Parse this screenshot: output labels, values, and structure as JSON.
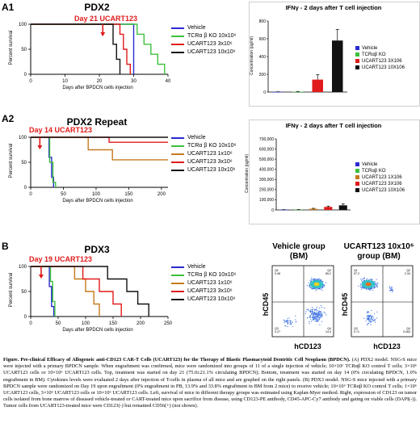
{
  "panels": {
    "a1": {
      "label": "A1",
      "title": "PDX2",
      "annotation": "Day 21 UCART123",
      "ylabel": "Percent survival",
      "xlabel": "Days after BPDCN cells injection",
      "xticks": [
        "0",
        "10",
        "20",
        "30",
        "40"
      ],
      "yticks": [
        "0",
        "50",
        "100"
      ],
      "legend": [
        {
          "text": "Vehicle",
          "color": "#2b2bd1"
        },
        {
          "text": "TCRα β KO 10x10⁶",
          "color": "#3dc03d"
        },
        {
          "text": "UCART123 3x10⁶",
          "color": "#e01b1b"
        },
        {
          "text": "UCART123 10x10⁶",
          "color": "#111111"
        }
      ]
    },
    "a1bar": {
      "title": "IFNγ - 2 days after T cell injection",
      "ylabel": "Concentration (pg/ml)",
      "yticks": [
        "0",
        "200",
        "400",
        "600",
        "800"
      ],
      "legend": [
        {
          "text": "Vehicle",
          "color": "#2b2bd1"
        },
        {
          "text": "TCRαβ KO",
          "color": "#3dc03d"
        },
        {
          "text": "UCART123 3X106",
          "color": "#e01b1b"
        },
        {
          "text": "UCART123 10X106",
          "color": "#111111"
        }
      ]
    },
    "a2": {
      "label": "A2",
      "title": "PDX2 Repeat",
      "annotation": "Day 14 UCART123",
      "ylabel": "Percent survival",
      "xlabel": "Days after BPDCN cells injection",
      "xticks": [
        "0",
        "50",
        "100",
        "150",
        "200"
      ],
      "yticks": [
        "0",
        "50",
        "100"
      ],
      "legend": [
        {
          "text": "Vehicle",
          "color": "#2b2bd1"
        },
        {
          "text": "TCRα β KO 10x10⁶",
          "color": "#3dc03d"
        },
        {
          "text": "UCART123 1x10⁶",
          "color": "#c77a1d"
        },
        {
          "text": "UCART123 3x10⁶",
          "color": "#e01b1b"
        },
        {
          "text": "UCART123 10x10⁶",
          "color": "#111111"
        }
      ]
    },
    "a2bar": {
      "title": "IFNγ - 2 days after T cell injection",
      "ylabel": "Concentration (pg/ml)",
      "yticks": [
        "0",
        "100,000",
        "200,000",
        "300,000",
        "400,000",
        "500,000",
        "600,000",
        "700,000"
      ],
      "legend": [
        {
          "text": "Vehicle",
          "color": "#2b2bd1"
        },
        {
          "text": "TCRαβ KO",
          "color": "#3dc03d"
        },
        {
          "text": "UCART123 1X106",
          "color": "#c77a1d"
        },
        {
          "text": "UCART123 3X106",
          "color": "#e01b1b"
        },
        {
          "text": "UCART123 10X106",
          "color": "#111111"
        }
      ]
    },
    "b": {
      "label": "B",
      "title": "PDX3",
      "annotation": "Day 19 UCART123",
      "ylabel": "Percent survival",
      "xlabel": "Days after BPDCN cells injection",
      "xticks": [
        "0",
        "50",
        "100",
        "150",
        "200",
        "250"
      ],
      "yticks": [
        "0",
        "50",
        "100"
      ],
      "legend": [
        {
          "text": "Vehicle",
          "color": "#2b2bd1"
        },
        {
          "text": "TCRα β KO 10x10⁶",
          "color": "#3dc03d"
        },
        {
          "text": "UCART123 1x10⁶",
          "color": "#c77a1d"
        },
        {
          "text": "UCART123 3x10⁶",
          "color": "#e01b1b"
        },
        {
          "text": "UCART123 10x10⁶",
          "color": "#111111"
        }
      ]
    },
    "flow": {
      "vehicle_title": "Vehicle group",
      "vehicle_sub": "(BM)",
      "ucart_title": "UCART123 10x10⁶",
      "ucart_sub": "group (BM)",
      "ylabel": "hCD45",
      "xlabel": "hCD123"
    }
  },
  "caption": {
    "title": "Figure. Pre-clinical Efficacy of Allogeneic anti-CD123 CAR-T Cells (UCART123) for the Therapy of Blastic Plasmacytoid Dentritic Cell Neoplasm (BPDCN).",
    "body": " (A) PDX2 model. NSG-S mice were injected with a primary BPDCN sample. When engraftment was confirmed, mice were randomized into groups of 11 of a single injection of vehicle; 10×10⁶ TCRαβ KO control T cells; 3×10⁶ UCART123 cells or 10×10⁶ UCART123 cells. Top, treatment was started on day 21 (75.0±21.1% circulating BPDCN); Bottom, treatment was started on day 14 (0% circulating BPDCN, 1.0% engraftment in BM). Cytokines levels were evaluated 2 days after injection of T-cells in plasma of all mice and are graphed on the right panels. (B) PDX3 model. NSG-S mice injected with a primary BPDCN sample were randomized on Day 19 upon engraftment (0% engraftment in PB, 13.9% and 33.8% engraftment in BM from 2 mice) to receive vehicle; 10×10⁶ TCRαβ KO control T cells; 1×10⁶ UCART123 cells, 3×10⁶ UCART123 cells or 10×10⁶ UCART123 cells. Left, survival of mice in different therapy groups was estimated using Kaplan-Myer method. Right, expression of CD123 on tumor cells isolated from bone marrow of diseased vehicle-treated or CART-treated mice upon sacrifice from disease, using CD123-PE antibody, CD45-APC-Cy7 antibody and gating on viable cells (DAPI(-)). Tumor cells from UCART123-treated mice were CD123(-) but remained CD56(+) (not shown)."
  },
  "chart_data": [
    {
      "type": "line",
      "title": "PDX2",
      "xlabel": "Days after BPDCN cells injection",
      "ylabel": "Percent survival",
      "xlim": [
        0,
        40
      ],
      "ylim": [
        0,
        100
      ],
      "series": [
        {
          "name": "Vehicle",
          "points": [
            [
              0,
              100
            ],
            [
              30,
              100
            ],
            [
              30,
              0
            ]
          ]
        },
        {
          "name": "TCRα β KO 10x10⁶",
          "points": [
            [
              0,
              100
            ],
            [
              31,
              100
            ],
            [
              31,
              80
            ],
            [
              33,
              80
            ],
            [
              33,
              60
            ],
            [
              35,
              60
            ],
            [
              35,
              40
            ],
            [
              37,
              40
            ],
            [
              37,
              20
            ],
            [
              39,
              20
            ],
            [
              39,
              0
            ]
          ]
        },
        {
          "name": "UCART123 3x10⁶",
          "points": [
            [
              0,
              100
            ],
            [
              26,
              100
            ],
            [
              26,
              80
            ],
            [
              27,
              80
            ],
            [
              27,
              50
            ],
            [
              28,
              50
            ],
            [
              28,
              20
            ],
            [
              29,
              20
            ],
            [
              29,
              0
            ]
          ]
        },
        {
          "name": "UCART123 10x10⁶",
          "points": [
            [
              0,
              100
            ],
            [
              24,
              100
            ],
            [
              24,
              60
            ],
            [
              25,
              60
            ],
            [
              25,
              30
            ],
            [
              26,
              30
            ],
            [
              26,
              0
            ]
          ]
        }
      ]
    },
    {
      "type": "bar",
      "title": "IFNγ - 2 days after T cell injection",
      "ylabel": "Concentration (pg/ml)",
      "ylim": [
        0,
        800
      ],
      "categories": [
        "Vehicle",
        "TCRαβ KO",
        "UCART123 3X106",
        "UCART123 10X106"
      ],
      "values": [
        2,
        5,
        140,
        580
      ],
      "errors": [
        1,
        2,
        55,
        125
      ]
    },
    {
      "type": "line",
      "title": "PDX2 Repeat",
      "xlabel": "Days after BPDCN cells injection",
      "ylabel": "Percent survival",
      "xlim": [
        0,
        210
      ],
      "ylim": [
        0,
        100
      ],
      "series": [
        {
          "name": "Vehicle",
          "points": [
            [
              0,
              100
            ],
            [
              28,
              100
            ],
            [
              28,
              60
            ],
            [
              32,
              60
            ],
            [
              32,
              20
            ],
            [
              35,
              20
            ],
            [
              35,
              0
            ]
          ]
        },
        {
          "name": "TCRα β KO 10x10⁶",
          "points": [
            [
              0,
              100
            ],
            [
              29,
              100
            ],
            [
              29,
              50
            ],
            [
              34,
              50
            ],
            [
              34,
              10
            ],
            [
              38,
              10
            ],
            [
              38,
              0
            ]
          ]
        },
        {
          "name": "UCART123 1x10⁶",
          "points": [
            [
              0,
              100
            ],
            [
              88,
              100
            ],
            [
              88,
              75
            ],
            [
              125,
              75
            ],
            [
              125,
              55
            ],
            [
              210,
              55
            ]
          ]
        },
        {
          "name": "UCART123 3x10⁶",
          "points": [
            [
              0,
              100
            ],
            [
              120,
              100
            ],
            [
              120,
              90
            ],
            [
              210,
              90
            ]
          ]
        },
        {
          "name": "UCART123 10x10⁶",
          "points": [
            [
              0,
              100
            ],
            [
              210,
              100
            ]
          ]
        }
      ]
    },
    {
      "type": "bar",
      "title": "IFNγ - 2 days after T cell injection",
      "ylabel": "Concentration (pg/ml)",
      "ylim": [
        0,
        700000
      ],
      "categories": [
        "Vehicle",
        "TCRαβ KO",
        "UCART123 1X106",
        "UCART123 3X106",
        "UCART123 10X106"
      ],
      "values": [
        2000,
        3000,
        12000,
        30000,
        45000
      ],
      "errors": [
        1000,
        1500,
        4000,
        8000,
        15000
      ]
    },
    {
      "type": "line",
      "title": "PDX3",
      "xlabel": "Days after BPDCN cells injection",
      "ylabel": "Percent survival",
      "xlim": [
        0,
        250
      ],
      "ylim": [
        0,
        100
      ],
      "series": [
        {
          "name": "Vehicle",
          "points": [
            [
              0,
              100
            ],
            [
              34,
              100
            ],
            [
              34,
              60
            ],
            [
              38,
              60
            ],
            [
              38,
              20
            ],
            [
              42,
              20
            ],
            [
              42,
              0
            ]
          ]
        },
        {
          "name": "TCRα β KO 10x10⁶",
          "points": [
            [
              0,
              100
            ],
            [
              36,
              100
            ],
            [
              36,
              70
            ],
            [
              40,
              70
            ],
            [
              40,
              30
            ],
            [
              44,
              30
            ],
            [
              44,
              0
            ]
          ]
        },
        {
          "name": "UCART123 1x10⁶",
          "points": [
            [
              0,
              100
            ],
            [
              80,
              100
            ],
            [
              80,
              75
            ],
            [
              100,
              75
            ],
            [
              100,
              50
            ],
            [
              115,
              50
            ],
            [
              115,
              25
            ],
            [
              125,
              25
            ],
            [
              125,
              0
            ]
          ]
        },
        {
          "name": "UCART123 3x10⁶",
          "points": [
            [
              0,
              100
            ],
            [
              95,
              100
            ],
            [
              95,
              75
            ],
            [
              125,
              75
            ],
            [
              125,
              50
            ],
            [
              150,
              50
            ],
            [
              150,
              25
            ],
            [
              165,
              25
            ],
            [
              165,
              0
            ]
          ]
        },
        {
          "name": "UCART123 10x10⁶",
          "points": [
            [
              0,
              100
            ],
            [
              140,
              100
            ],
            [
              140,
              75
            ],
            [
              175,
              75
            ],
            [
              175,
              50
            ],
            [
              195,
              50
            ],
            [
              195,
              25
            ],
            [
              215,
              25
            ],
            [
              215,
              0
            ]
          ]
        }
      ]
    },
    {
      "type": "scatter",
      "title": "Vehicle group (BM)",
      "xlabel": "hCD123",
      "ylabel": "hCD45",
      "quadrants": {
        "Q1": "0.48",
        "Q2": "85.2",
        "Q3": "0.27",
        "Q4": "14.0"
      }
    },
    {
      "type": "scatter",
      "title": "UCART123 10x10⁶ group (BM)",
      "xlabel": "hCD123",
      "ylabel": "hCD45",
      "quadrants": {
        "Q1": "97.2",
        "Q2": "2.34",
        "Q3": "0.71",
        "Q4": "0.083"
      }
    }
  ],
  "colors": {
    "vehicle": "#2b2bd1",
    "tcr": "#3dc03d",
    "u1": "#c77a1d",
    "u3": "#e01b1b",
    "u10": "#111111",
    "annotation": "#e01b1b"
  }
}
